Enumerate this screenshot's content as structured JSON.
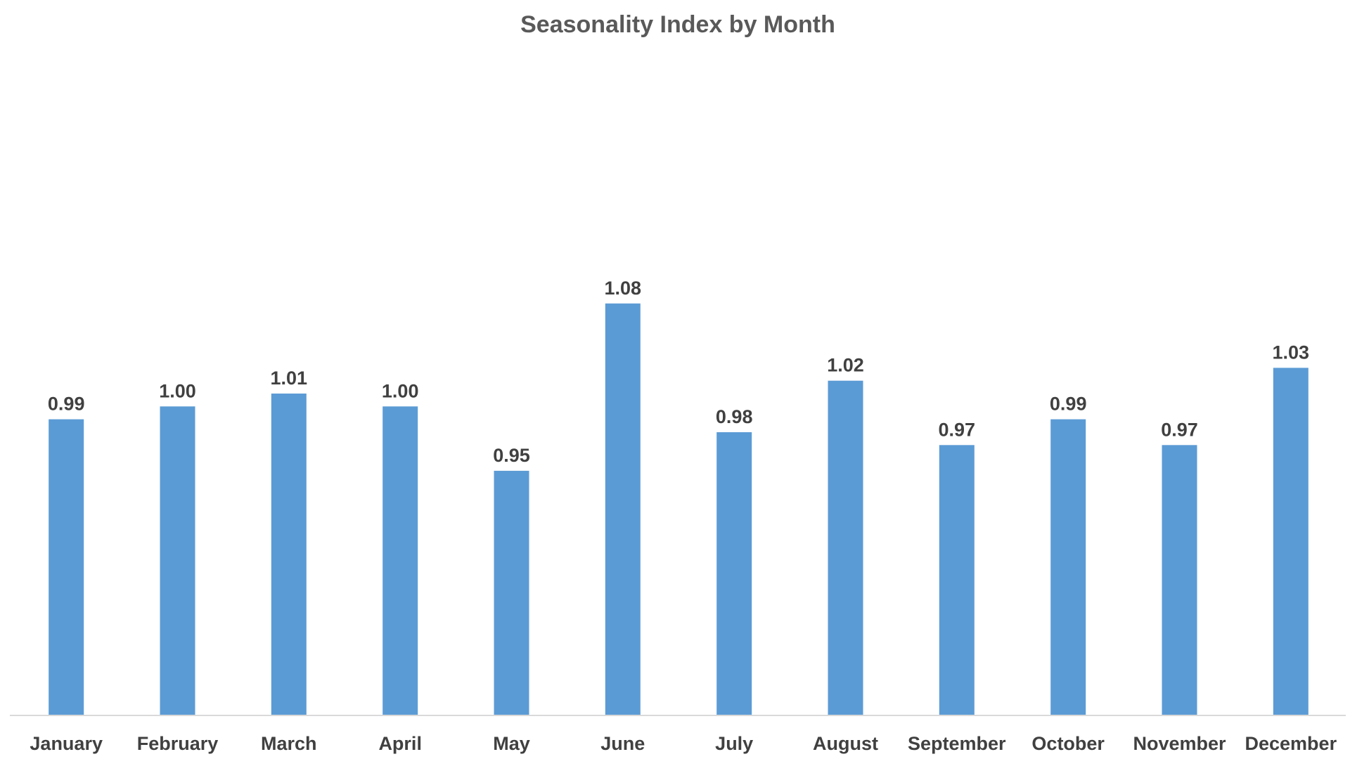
{
  "chart_data": {
    "type": "bar",
    "title": "Seasonality Index by Month",
    "xlabel": "",
    "ylabel": "",
    "categories": [
      "January",
      "February",
      "March",
      "April",
      "May",
      "June",
      "July",
      "August",
      "September",
      "October",
      "November",
      "December"
    ],
    "values": [
      0.99,
      1.0,
      1.01,
      1.0,
      0.95,
      1.08,
      0.98,
      1.02,
      0.97,
      0.99,
      0.97,
      1.03
    ],
    "data_labels": [
      "0.99",
      "1.00",
      "1.01",
      "1.00",
      "0.95",
      "1.08",
      "0.98",
      "1.02",
      "0.97",
      "0.99",
      "0.97",
      "1.03"
    ],
    "ylim": [
      0.76,
      1.1
    ],
    "grid": false,
    "legend": "none",
    "colors": {
      "bar": "#5B9BD5",
      "axis": "#D9D9D9",
      "title": "#595959",
      "labels": "#404040"
    }
  }
}
